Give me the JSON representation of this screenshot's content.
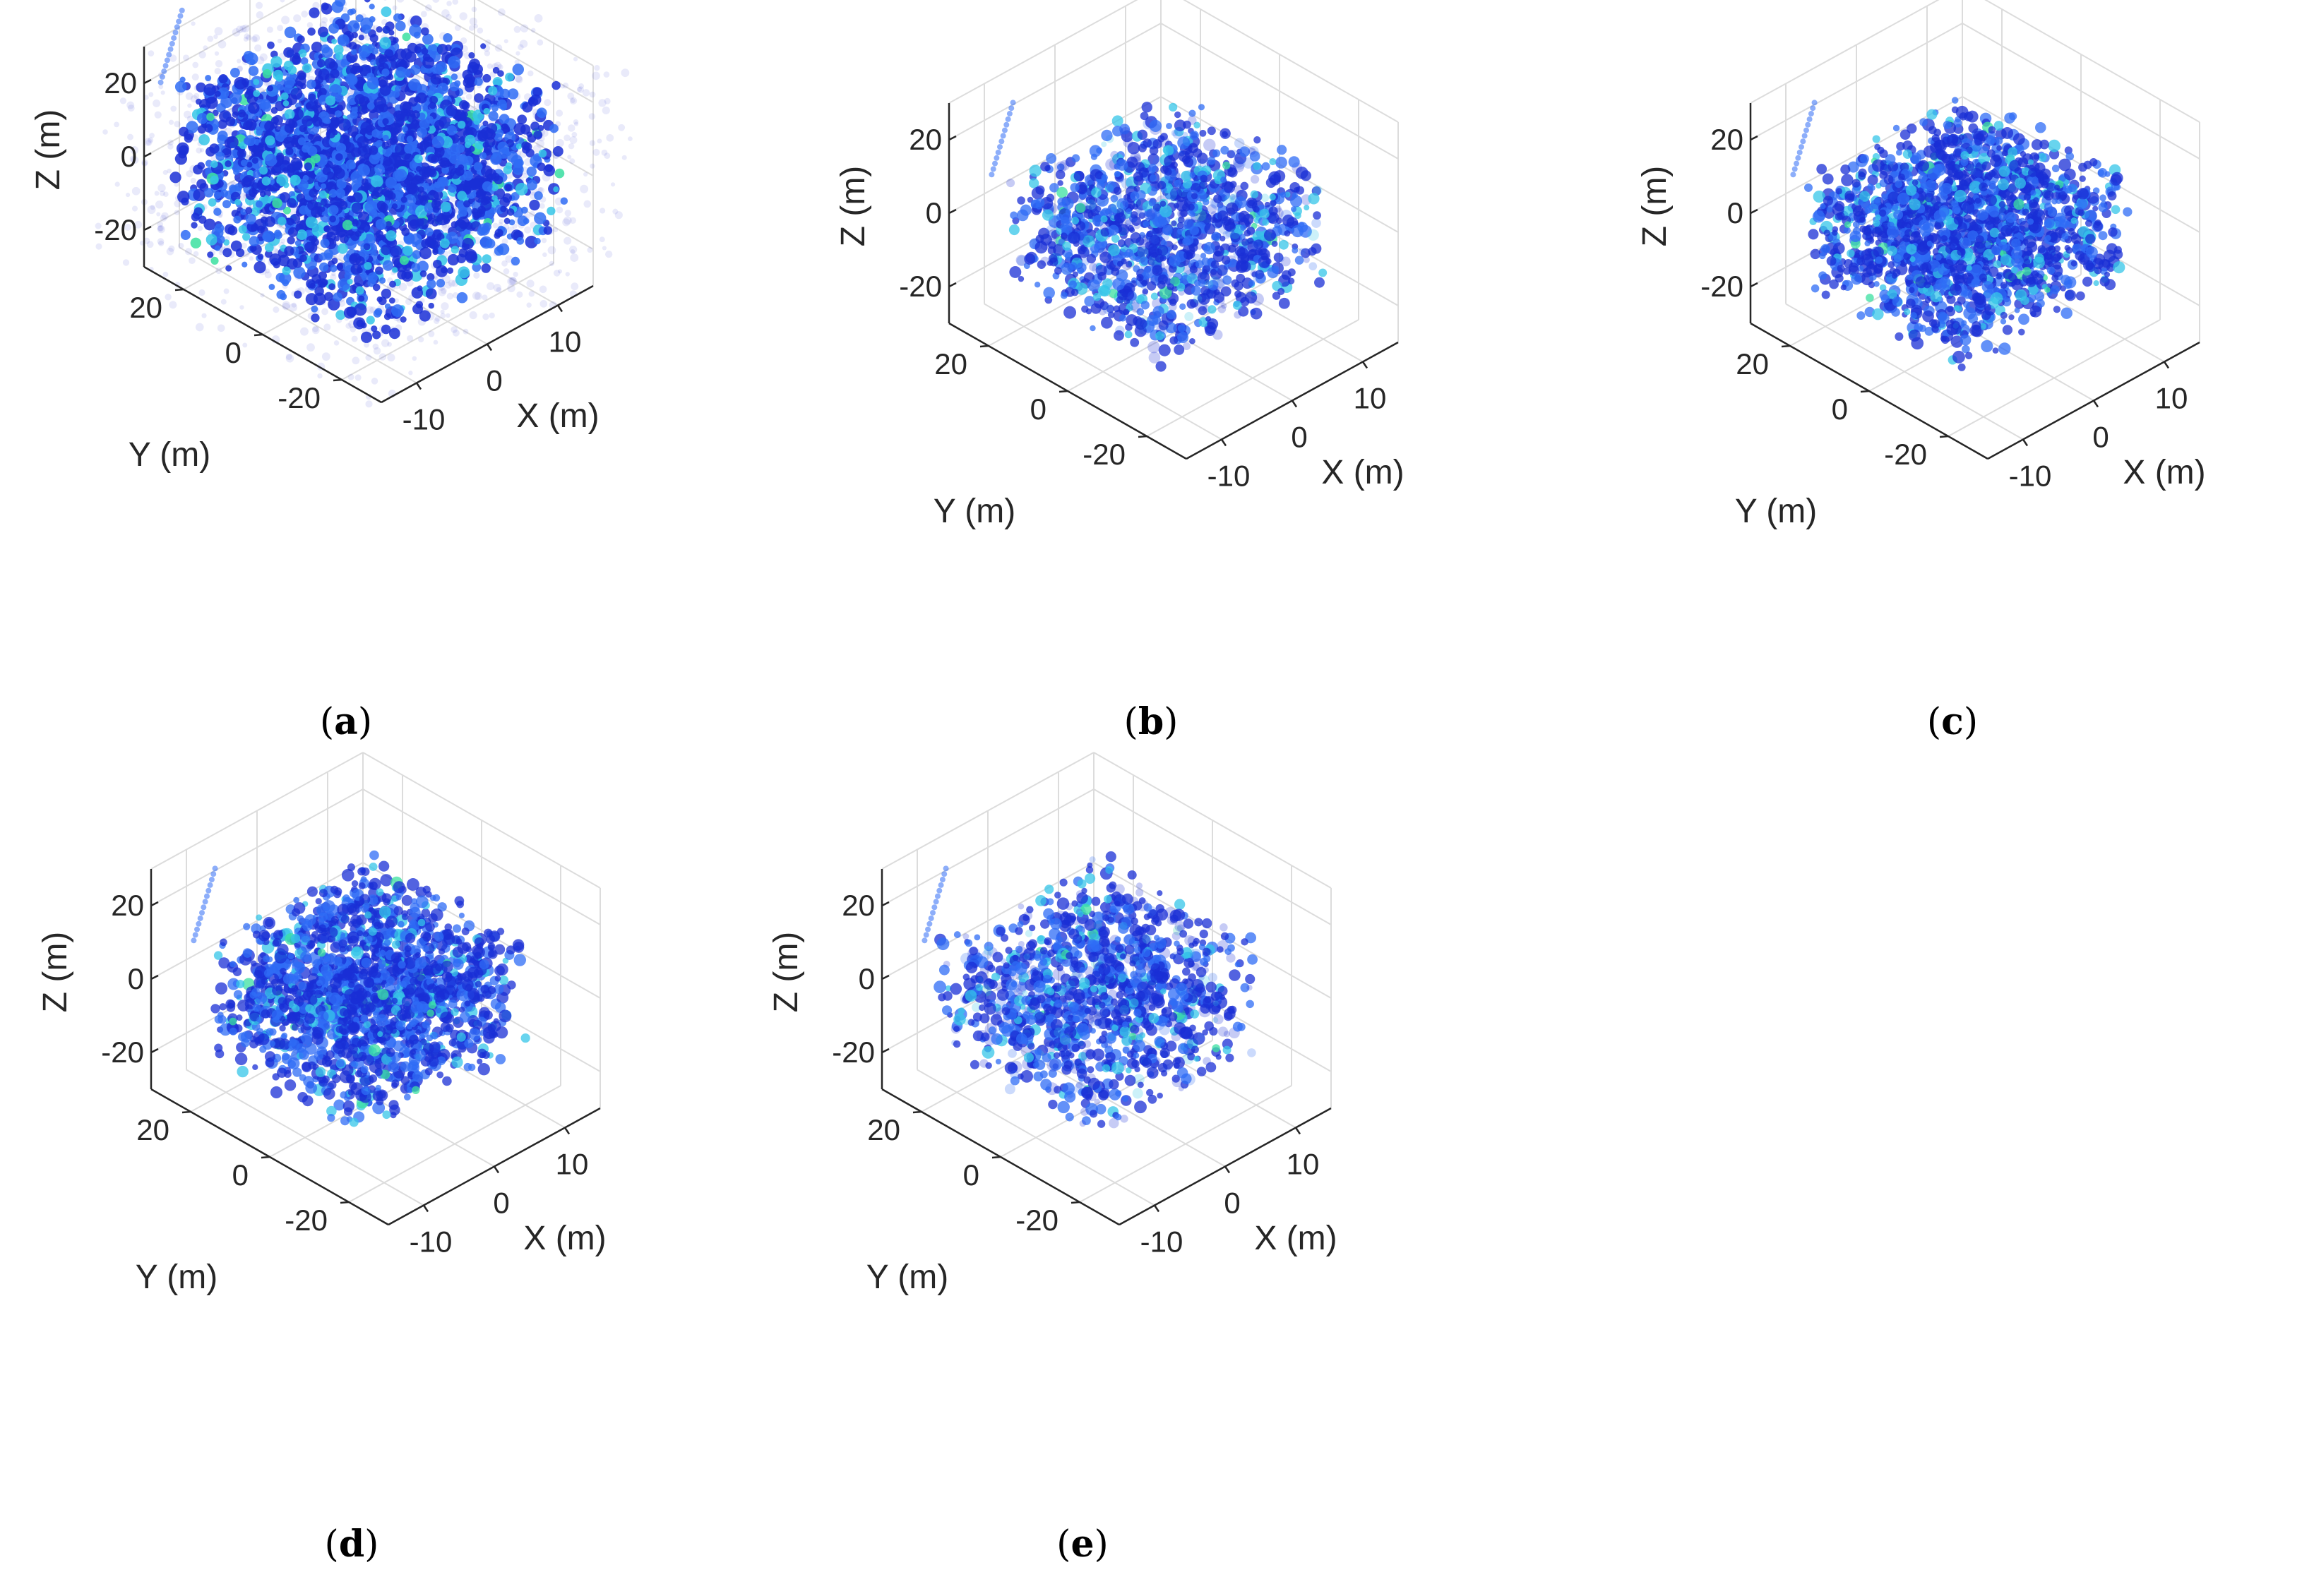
{
  "figure": {
    "chart_data": [
      {
        "type": "scatter3d",
        "panel": "a",
        "caption_open": "(",
        "caption_letter": "a",
        "caption_close": ")",
        "xlabel": "X (m)",
        "ylabel": "Y (m)",
        "zlabel": "Z (m)",
        "xticks": [
          "-10",
          "0",
          "10"
        ],
        "yticks": [
          "20",
          "0",
          "-20"
        ],
        "zticks": [
          "20",
          "0",
          "-20"
        ],
        "xlim": [
          -15,
          15
        ],
        "ylim": [
          -30,
          30
        ],
        "zlim": [
          -30,
          30
        ],
        "grid": true,
        "style": "dense",
        "cloud_x": [
          -14,
          14
        ],
        "cloud_y": [
          -25,
          25
        ],
        "cloud_z": [
          -20,
          22
        ]
      },
      {
        "type": "scatter3d",
        "panel": "b",
        "caption_open": "(",
        "caption_letter": "b",
        "caption_close": ")",
        "xlabel": "X (m)",
        "ylabel": "Y (m)",
        "zlabel": "Z (m)",
        "xticks": [
          "-10",
          "0",
          "10"
        ],
        "yticks": [
          "20",
          "0",
          "-20"
        ],
        "zticks": [
          "20",
          "0",
          "-20"
        ],
        "xlim": [
          -15,
          15
        ],
        "ylim": [
          -30,
          30
        ],
        "zlim": [
          -30,
          30
        ],
        "grid": true,
        "style": "sparse",
        "cloud_x": [
          -12,
          12
        ],
        "cloud_y": [
          -18,
          22
        ],
        "cloud_z": [
          -18,
          12
        ]
      },
      {
        "type": "scatter3d",
        "panel": "c",
        "caption_open": "(",
        "caption_letter": "c",
        "caption_close": ")",
        "xlabel": "X (m)",
        "ylabel": "Y (m)",
        "zlabel": "Z (m)",
        "xticks": [
          "-10",
          "0",
          "10"
        ],
        "yticks": [
          "20",
          "0",
          "-20"
        ],
        "zticks": [
          "20",
          "0",
          "-20"
        ],
        "xlim": [
          -15,
          15
        ],
        "ylim": [
          -30,
          30
        ],
        "zlim": [
          -30,
          30
        ],
        "grid": true,
        "style": "medium",
        "cloud_x": [
          -12,
          12
        ],
        "cloud_y": [
          -18,
          22
        ],
        "cloud_z": [
          -18,
          12
        ]
      },
      {
        "type": "scatter3d",
        "panel": "d",
        "caption_open": "(",
        "caption_letter": "d",
        "caption_close": ")",
        "xlabel": "X (m)",
        "ylabel": "Y (m)",
        "zlabel": "Z (m)",
        "xticks": [
          "-10",
          "0",
          "10"
        ],
        "yticks": [
          "20",
          "0",
          "-20"
        ],
        "zticks": [
          "20",
          "0",
          "-20"
        ],
        "xlim": [
          -15,
          15
        ],
        "ylim": [
          -30,
          30
        ],
        "zlim": [
          -30,
          30
        ],
        "grid": true,
        "style": "medium",
        "cloud_x": [
          -12,
          12
        ],
        "cloud_y": [
          -18,
          22
        ],
        "cloud_z": [
          -18,
          12
        ]
      },
      {
        "type": "scatter3d",
        "panel": "e",
        "caption_open": "(",
        "caption_letter": "e",
        "caption_close": ")",
        "xlabel": "X (m)",
        "ylabel": "Y (m)",
        "zlabel": "Z (m)",
        "xticks": [
          "-10",
          "0",
          "10"
        ],
        "yticks": [
          "20",
          "0",
          "-20"
        ],
        "zticks": [
          "20",
          "0",
          "-20"
        ],
        "xlim": [
          -15,
          15
        ],
        "ylim": [
          -30,
          30
        ],
        "zlim": [
          -30,
          30
        ],
        "grid": true,
        "style": "sparse",
        "cloud_x": [
          -12,
          12
        ],
        "cloud_y": [
          -18,
          22
        ],
        "cloud_z": [
          -18,
          12
        ]
      }
    ],
    "colors": {
      "grid": "#dcdcdc",
      "axis": "#262626",
      "cloud_dark": "#1a2fd6",
      "cloud_mid": "#2f6cf5",
      "cloud_light": "#35c6e8",
      "cloud_green": "#3be0a0",
      "haze": "#4a4fd8"
    }
  }
}
